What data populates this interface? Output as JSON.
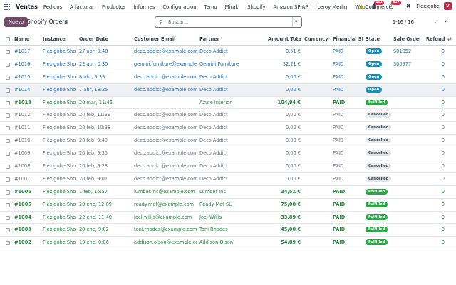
{
  "app": {
    "name": "Ventas"
  },
  "menu": [
    "Pedidos",
    "A facturar",
    "Productos",
    "Informes",
    "Configuración",
    "Temu",
    "Mirakl",
    "Shopify",
    "Amazon SP-API",
    "Leroy Merlin",
    "WooCommerce"
  ],
  "nav_right": {
    "chat_badge": "101",
    "activity_badge": "317",
    "company": "Flexigobe",
    "avatar": "V"
  },
  "control": {
    "new_label": "Nuevo",
    "title": "Shopify Orders",
    "search_placeholder": "Buscar...",
    "pager": "1-16 / 16"
  },
  "columns": {
    "name": "Name",
    "instance": "Instance",
    "order_date": "Order Date",
    "customer_email": "Customer Email",
    "partner": "Partner",
    "amount_total": "Amount Total",
    "currency": "Currency",
    "financial_status": "Financial St...",
    "state": "State",
    "sale_order": "Sale Order",
    "refunds": "Refunds"
  },
  "rows": [
    {
      "name": "#1017",
      "instance": "Flexigobe Sho...",
      "date": "27 abr, 9:48",
      "email": "deco.addict@example.com",
      "partner": "Deco Addict",
      "amount": "0,51 €",
      "currency": "",
      "fin": "PAID",
      "state": "Open",
      "so": "S01052",
      "refunds": "0",
      "tone": "blue"
    },
    {
      "name": "#1016",
      "instance": "Flexigobe Sho...",
      "date": "22 abr, 0:35",
      "email": "gemini.furniture@example.com",
      "partner": "Gemini Furniture",
      "amount": "32,21 €",
      "currency": "",
      "fin": "PAID",
      "state": "Open",
      "so": "S00977",
      "refunds": "0",
      "tone": "blue"
    },
    {
      "name": "#1015",
      "instance": "Flexigobe Sho...",
      "date": "8 abr, 9:39",
      "email": "deco.addict@example.com",
      "partner": "Deco Addict",
      "amount": "0,00 €",
      "currency": "",
      "fin": "PAID",
      "state": "Open",
      "so": "",
      "refunds": "0",
      "tone": "blue"
    },
    {
      "name": "#1014",
      "instance": "Flexigobe Sho...",
      "date": "7 abr, 18:25",
      "email": "deco.addict@example.com",
      "partner": "Deco Addict",
      "amount": "0,00 €",
      "currency": "",
      "fin": "PAID",
      "state": "Open",
      "so": "",
      "refunds": "0",
      "tone": "blue",
      "highlight": true
    },
    {
      "name": "#1013",
      "instance": "Flexigobe Sho...",
      "date": "20 mar, 11:46",
      "email": "",
      "partner": "Azure Interior",
      "amount": "104,94 €",
      "currency": "",
      "fin": "PAID",
      "state": "Fulfilled",
      "so": "",
      "refunds": "0",
      "tone": "green"
    },
    {
      "name": "#1012",
      "instance": "Flexigobe Sho...",
      "date": "20 feb, 11:39",
      "email": "deco.addict@example.com",
      "partner": "Deco Addict",
      "amount": "0,00 €",
      "currency": "",
      "fin": "PAID",
      "state": "Cancelled",
      "so": "",
      "refunds": "0",
      "tone": "gray"
    },
    {
      "name": "#1011",
      "instance": "Flexigobe Sho...",
      "date": "20 feb, 10:38",
      "email": "deco.addict@example.com",
      "partner": "Deco Addict",
      "amount": "0,00 €",
      "currency": "",
      "fin": "PAID",
      "state": "Cancelled",
      "so": "",
      "refunds": "0",
      "tone": "gray"
    },
    {
      "name": "#1010",
      "instance": "Flexigobe Sho...",
      "date": "20 feb, 9:49",
      "email": "deco.addict@example.com",
      "partner": "Deco Addict",
      "amount": "0,00 €",
      "currency": "",
      "fin": "PAID",
      "state": "Cancelled",
      "so": "",
      "refunds": "0",
      "tone": "gray"
    },
    {
      "name": "#1009",
      "instance": "Flexigobe Sho...",
      "date": "20 feb, 9:35",
      "email": "deco.addict@example.com",
      "partner": "Deco Addict",
      "amount": "0,00 €",
      "currency": "",
      "fin": "PAID",
      "state": "Cancelled",
      "so": "",
      "refunds": "0",
      "tone": "gray"
    },
    {
      "name": "#1008",
      "instance": "Flexigobe Sho...",
      "date": "20 feb, 9:23",
      "email": "deco.addict@example.com",
      "partner": "Deco Addict",
      "amount": "0,00 €",
      "currency": "",
      "fin": "PAID",
      "state": "Cancelled",
      "so": "",
      "refunds": "0",
      "tone": "gray"
    },
    {
      "name": "#1007",
      "instance": "Flexigobe Sho...",
      "date": "20 feb, 9:01",
      "email": "deco.addict@example.com",
      "partner": "Deco Addict",
      "amount": "0,00 €",
      "currency": "",
      "fin": "PAID",
      "state": "Cancelled",
      "so": "",
      "refunds": "0",
      "tone": "gray"
    },
    {
      "name": "#1006",
      "instance": "Flexigobe Sho...",
      "date": "1 feb, 16:57",
      "email": "lumber.inc@example.com",
      "partner": "Lumber Inc",
      "amount": "34,51 €",
      "currency": "",
      "fin": "PAID",
      "state": "Fulfilled",
      "so": "",
      "refunds": "0",
      "tone": "green"
    },
    {
      "name": "#1005",
      "instance": "Flexigobe Sho...",
      "date": "29 ene, 12:09",
      "email": "ready.mat@example.com",
      "partner": "Ready Mat SL",
      "amount": "75,00 €",
      "currency": "",
      "fin": "PAID",
      "state": "Fulfilled",
      "so": "",
      "refunds": "0",
      "tone": "green"
    },
    {
      "name": "#1004",
      "instance": "Flexigobe Sho...",
      "date": "22 ene, 11:40",
      "email": "joel.willis@example.com",
      "partner": "Joel Willis",
      "amount": "33,89 €",
      "currency": "",
      "fin": "PAID",
      "state": "Fulfilled",
      "so": "",
      "refunds": "0",
      "tone": "green"
    },
    {
      "name": "#1003",
      "instance": "Flexigobe Sho...",
      "date": "20 ene, 9:02",
      "email": "toni.rhodes@example.com",
      "partner": "Toni Rhodes",
      "amount": "45,00 €",
      "currency": "",
      "fin": "PAID",
      "state": "Fulfilled",
      "so": "",
      "refunds": "0",
      "tone": "green"
    },
    {
      "name": "#1002",
      "instance": "Flexigobe Sho...",
      "date": "19 ene, 0:06",
      "email": "addison.olson@example.com",
      "partner": "Addison Olson",
      "amount": "54,89 €",
      "currency": "",
      "fin": "PAID",
      "state": "Fulfilled",
      "so": "",
      "refunds": "0",
      "tone": "green"
    }
  ]
}
